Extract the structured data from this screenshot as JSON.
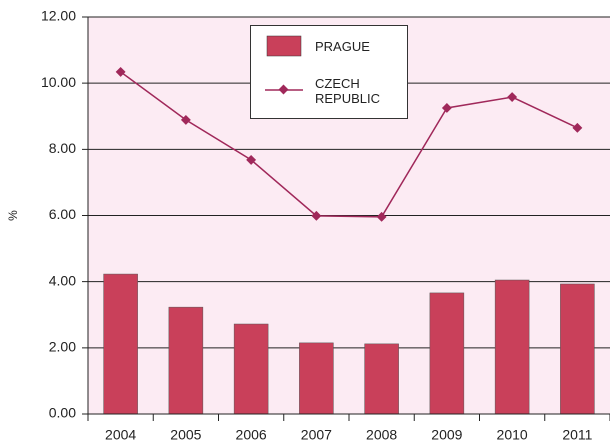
{
  "chart_data": {
    "type": "bar_line",
    "y_label": "%",
    "categories": [
      "2004",
      "2005",
      "2006",
      "2007",
      "2008",
      "2009",
      "2010",
      "2011"
    ],
    "series": [
      {
        "name": "PRAGUE",
        "type": "bar",
        "color": "#c9405a",
        "values": [
          4.23,
          3.23,
          2.72,
          2.15,
          2.12,
          3.66,
          4.05,
          3.93
        ]
      },
      {
        "name": "CZECH REPUBLIC",
        "type": "line",
        "color": "#a0285a",
        "values": [
          10.34,
          8.89,
          7.68,
          5.99,
          5.96,
          9.25,
          9.58,
          8.65
        ]
      }
    ],
    "ylim": [
      0,
      12
    ],
    "yticks": [
      {
        "value": 0,
        "label": "0.00"
      },
      {
        "value": 2,
        "label": "2.00"
      },
      {
        "value": 4,
        "label": "4.00"
      },
      {
        "value": 6,
        "label": "6.00"
      },
      {
        "value": 8,
        "label": "8.00"
      },
      {
        "value": 10,
        "label": "10.00"
      },
      {
        "value": 12,
        "label": "12.00"
      }
    ],
    "grid": true,
    "background": "#fcebf3"
  }
}
